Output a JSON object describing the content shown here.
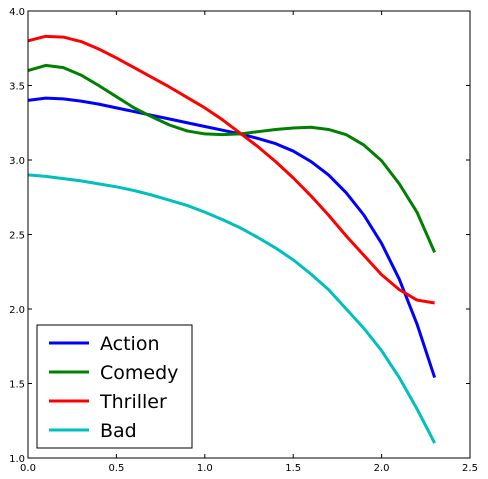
{
  "chart_data": {
    "type": "line",
    "title": "",
    "xlabel": "",
    "ylabel": "",
    "xlim": [
      0.0,
      2.5
    ],
    "ylim": [
      1.0,
      4.0
    ],
    "xticks": [
      "0.0",
      "0.5",
      "1.0",
      "1.5",
      "2.0",
      "2.5"
    ],
    "yticks": [
      "1.0",
      "1.5",
      "2.0",
      "2.5",
      "3.0",
      "3.5",
      "4.0"
    ],
    "grid": false,
    "legend_position": "bottom-left",
    "x": [
      0.0,
      0.1,
      0.2,
      0.3,
      0.4,
      0.5,
      0.6,
      0.7,
      0.8,
      0.9,
      1.0,
      1.1,
      1.2,
      1.3,
      1.4,
      1.5,
      1.6,
      1.7,
      1.8,
      1.9,
      2.0,
      2.1,
      2.2,
      2.3
    ],
    "series": [
      {
        "name": "Action",
        "color": "#0000ff",
        "values": [
          3.4,
          3.415,
          3.41,
          3.395,
          3.375,
          3.35,
          3.325,
          3.3,
          3.275,
          3.25,
          3.225,
          3.2,
          3.175,
          3.145,
          3.11,
          3.06,
          2.99,
          2.9,
          2.78,
          2.63,
          2.44,
          2.2,
          1.9,
          1.54
        ]
      },
      {
        "name": "Comedy",
        "color": "#008000",
        "values": [
          3.6,
          3.635,
          3.62,
          3.57,
          3.5,
          3.425,
          3.35,
          3.29,
          3.235,
          3.195,
          3.175,
          3.17,
          3.175,
          3.19,
          3.205,
          3.215,
          3.22,
          3.205,
          3.17,
          3.1,
          2.995,
          2.84,
          2.65,
          2.38
        ]
      },
      {
        "name": "Thriller",
        "color": "#ff0000",
        "values": [
          3.8,
          3.83,
          3.825,
          3.795,
          3.745,
          3.685,
          3.62,
          3.555,
          3.49,
          3.42,
          3.35,
          3.27,
          3.18,
          3.09,
          2.99,
          2.88,
          2.76,
          2.63,
          2.49,
          2.36,
          2.23,
          2.13,
          2.06,
          2.04
        ]
      },
      {
        "name": "Bad",
        "color": "#00bfbf",
        "values": [
          2.9,
          2.89,
          2.875,
          2.86,
          2.84,
          2.82,
          2.795,
          2.765,
          2.73,
          2.695,
          2.65,
          2.6,
          2.545,
          2.48,
          2.41,
          2.33,
          2.235,
          2.13,
          2.0,
          1.87,
          1.72,
          1.54,
          1.33,
          1.1
        ]
      }
    ]
  }
}
